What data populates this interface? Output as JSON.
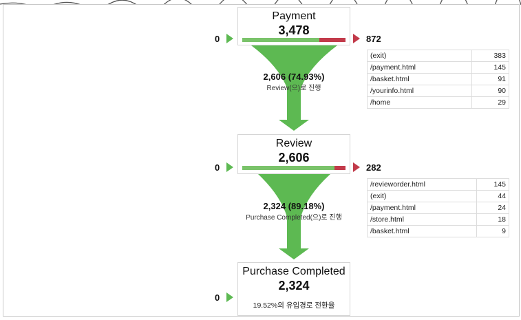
{
  "stages": [
    {
      "name": "Payment",
      "count": "3,478",
      "entries": "0",
      "exits": "872",
      "progress": 0.75
    },
    {
      "name": "Review",
      "count": "2,606",
      "entries": "0",
      "exits": "282",
      "progress": 0.892
    },
    {
      "name": "Purchase Completed",
      "count": "2,324",
      "entries": "0",
      "conversion_rate": "19.52%의 유입경로 전환율"
    }
  ],
  "conversions": [
    {
      "pct": "2,606 (74.93%)",
      "label": "Review(으)로 진행"
    },
    {
      "pct": "2,324 (89.18%)",
      "label": "Purchase Completed(으)로 진행"
    }
  ],
  "exit_tables": [
    [
      {
        "page": "(exit)",
        "count": "383"
      },
      {
        "page": "/payment.html",
        "count": "145"
      },
      {
        "page": "/basket.html",
        "count": "91"
      },
      {
        "page": "/yourinfo.html",
        "count": "90"
      },
      {
        "page": "/home",
        "count": "29"
      }
    ],
    [
      {
        "page": "/revieworder.html",
        "count": "145"
      },
      {
        "page": "(exit)",
        "count": "44"
      },
      {
        "page": "/payment.html",
        "count": "24"
      },
      {
        "page": "/store.html",
        "count": "18"
      },
      {
        "page": "/basket.html",
        "count": "9"
      }
    ]
  ],
  "colors": {
    "funnel_green": "#5db952",
    "exit_red": "#c23a4a"
  },
  "icons": {
    "entry": "play-right-icon",
    "exit": "play-right-icon"
  }
}
